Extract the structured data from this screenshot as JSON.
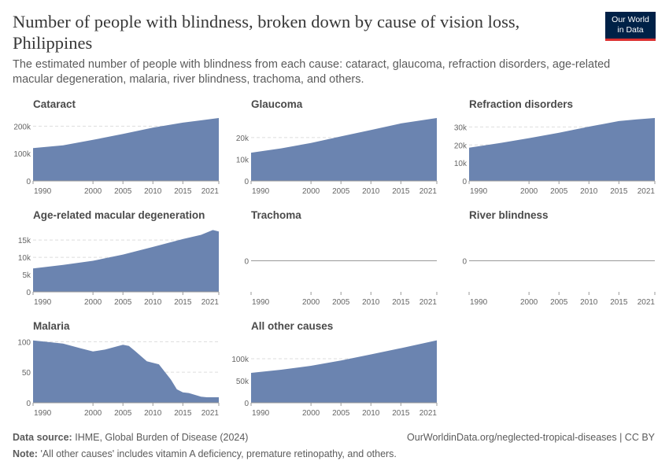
{
  "header": {
    "title": "Number of people with blindness, broken down by cause of vision loss, Philippines",
    "subtitle": "The estimated number of people with blindness from each cause: cataract, glaucoma, refraction disorders, age-related macular degeneration, malaria, river blindness, trachoma, and others.",
    "logo_line1": "Our World",
    "logo_line2": "in Data"
  },
  "footer": {
    "source_label": "Data source:",
    "source_text": "IHME, Global Burden of Disease (2024)",
    "url": "OurWorldinData.org/neglected-tropical-diseases | CC BY",
    "note_label": "Note:",
    "note_text": "'All other causes' includes vitamin A deficiency, premature retinopathy, and others."
  },
  "colors": {
    "area": "#6b84b0",
    "grid": "#dddddd",
    "axis": "#999999",
    "text": "#666666",
    "panel_title": "#4a4a4a"
  },
  "chart_data": [
    {
      "type": "area",
      "title": "Cataract",
      "x_ticks": [
        "1990",
        "2000",
        "2005",
        "2010",
        "2015",
        "2021"
      ],
      "y_ticks": [
        {
          "v": 0,
          "label": "0"
        },
        {
          "v": 100000,
          "label": "100k"
        },
        {
          "v": 200000,
          "label": "200k"
        }
      ],
      "ylim": [
        0,
        230000
      ],
      "x": [
        1990,
        1995,
        2000,
        2005,
        2010,
        2015,
        2021
      ],
      "values": [
        120000,
        130000,
        150000,
        172000,
        195000,
        213000,
        230000
      ]
    },
    {
      "type": "area",
      "title": "Glaucoma",
      "x_ticks": [
        "1990",
        "2000",
        "2005",
        "2010",
        "2015",
        "2021"
      ],
      "y_ticks": [
        {
          "v": 0,
          "label": "0"
        },
        {
          "v": 10000,
          "label": "10k"
        },
        {
          "v": 20000,
          "label": "20k"
        }
      ],
      "ylim": [
        0,
        29000
      ],
      "x": [
        1990,
        1995,
        2000,
        2005,
        2010,
        2015,
        2021
      ],
      "values": [
        13000,
        15000,
        17500,
        20500,
        23500,
        26500,
        29000
      ]
    },
    {
      "type": "area",
      "title": "Refraction disorders",
      "x_ticks": [
        "1990",
        "2000",
        "2005",
        "2010",
        "2015",
        "2021"
      ],
      "y_ticks": [
        {
          "v": 0,
          "label": "0"
        },
        {
          "v": 10000,
          "label": "10k"
        },
        {
          "v": 20000,
          "label": "20k"
        },
        {
          "v": 30000,
          "label": "30k"
        }
      ],
      "ylim": [
        0,
        35000
      ],
      "x": [
        1990,
        1995,
        2000,
        2005,
        2010,
        2015,
        2018,
        2021
      ],
      "values": [
        18500,
        21000,
        23800,
        26800,
        30200,
        33300,
        34200,
        35000
      ]
    },
    {
      "type": "area",
      "title": "Age-related macular degeneration",
      "x_ticks": [
        "1990",
        "2000",
        "2005",
        "2010",
        "2015",
        "2021"
      ],
      "y_ticks": [
        {
          "v": 0,
          "label": "0"
        },
        {
          "v": 5000,
          "label": "5k"
        },
        {
          "v": 10000,
          "label": "10k"
        },
        {
          "v": 15000,
          "label": "15k"
        }
      ],
      "ylim": [
        0,
        18000
      ],
      "x": [
        1990,
        1995,
        2000,
        2005,
        2010,
        2015,
        2018,
        2020,
        2021
      ],
      "values": [
        6800,
        7800,
        9000,
        10800,
        13000,
        15300,
        16500,
        17900,
        17500
      ]
    },
    {
      "type": "area",
      "title": "Trachoma",
      "x_ticks": [
        "1990",
        "2000",
        "2005",
        "2010",
        "2015",
        "2021"
      ],
      "y_ticks": [
        {
          "v": 0,
          "label": "0"
        }
      ],
      "ylim": [
        0,
        1
      ],
      "x": [
        1990,
        2021
      ],
      "values": [
        0,
        0
      ]
    },
    {
      "type": "area",
      "title": "River blindness",
      "x_ticks": [
        "1990",
        "2000",
        "2005",
        "2010",
        "2015",
        "2021"
      ],
      "y_ticks": [
        {
          "v": 0,
          "label": "0"
        }
      ],
      "ylim": [
        0,
        1
      ],
      "x": [
        1990,
        2021
      ],
      "values": [
        0,
        0
      ]
    },
    {
      "type": "area",
      "title": "Malaria",
      "x_ticks": [
        "1990",
        "2000",
        "2005",
        "2010",
        "2015",
        "2021"
      ],
      "y_ticks": [
        {
          "v": 0,
          "label": "0"
        },
        {
          "v": 50,
          "label": "50"
        },
        {
          "v": 100,
          "label": "100"
        }
      ],
      "ylim": [
        0,
        103
      ],
      "x": [
        1990,
        1993,
        1995,
        1998,
        2000,
        2002,
        2005,
        2006,
        2007,
        2009,
        2011,
        2013,
        2014,
        2015,
        2016,
        2018,
        2019,
        2021
      ],
      "values": [
        102,
        99,
        97,
        89,
        84,
        87,
        95,
        93,
        85,
        68,
        63,
        38,
        22,
        17,
        16,
        10,
        9,
        9
      ]
    },
    {
      "type": "area",
      "title": "All other causes",
      "x_ticks": [
        "1990",
        "2000",
        "2005",
        "2010",
        "2015",
        "2021"
      ],
      "y_ticks": [
        {
          "v": 0,
          "label": "0"
        },
        {
          "v": 50000,
          "label": "50k"
        },
        {
          "v": 100000,
          "label": "100k"
        }
      ],
      "ylim": [
        0,
        143000
      ],
      "x": [
        1990,
        1995,
        2000,
        2005,
        2010,
        2015,
        2021
      ],
      "values": [
        68000,
        75000,
        84000,
        96000,
        110000,
        124000,
        142000
      ]
    }
  ]
}
